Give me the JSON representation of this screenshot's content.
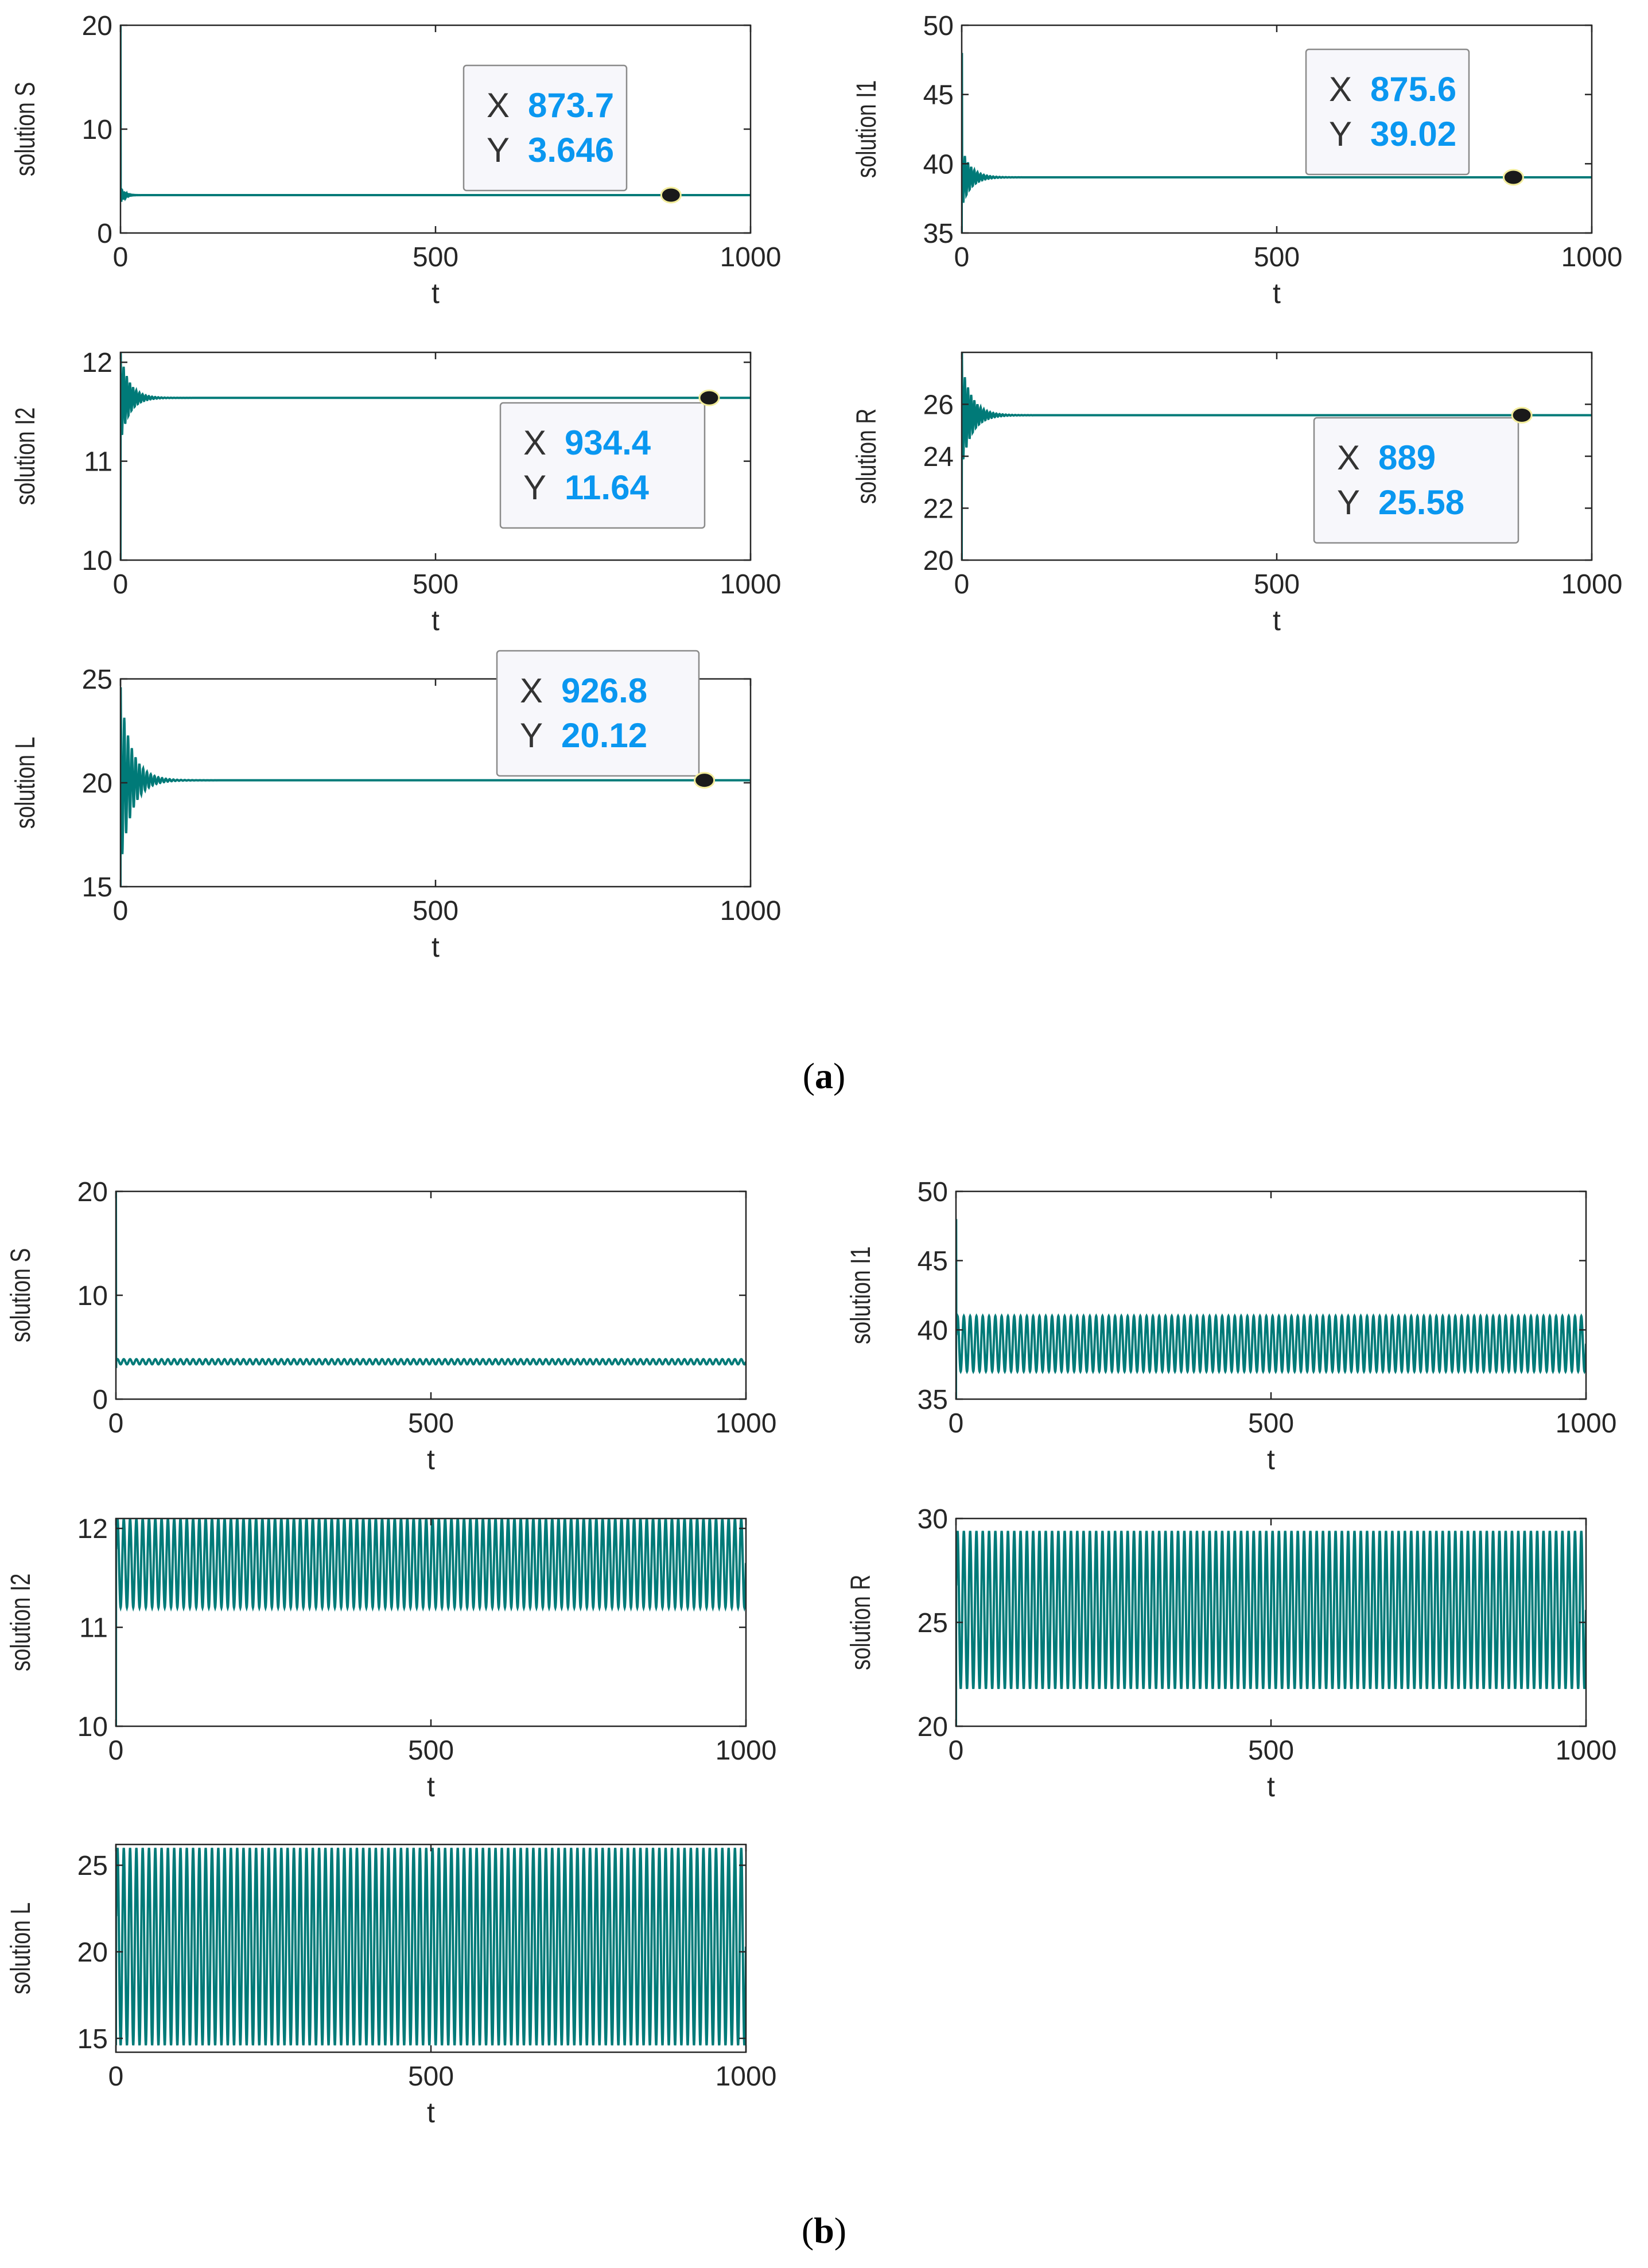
{
  "figure_labels": {
    "a": "a",
    "b": "b"
  },
  "colors": {
    "line": "#007a78",
    "datatip_value": "#0a97f0",
    "axis": "#262626",
    "marker": "#1a1a1a",
    "marker_edge": "#f2ec9a"
  },
  "chart_data": [
    {
      "id": "a-S",
      "type": "line",
      "panel": "a",
      "xlabel": "t",
      "ylabel": "solution S",
      "xlim": [
        0,
        1000
      ],
      "ylim": [
        0,
        20
      ],
      "xticks": [
        "0",
        "500",
        "1000"
      ],
      "yticks": [
        "0",
        "10",
        "20"
      ],
      "yticks_values": [
        0,
        10,
        20
      ],
      "behavior": "damped",
      "initial": 20,
      "dip": 3.0,
      "equilibrium": 3.646,
      "amplitude": 0.8,
      "decay_t": 6,
      "period": 2.5,
      "datatip": {
        "x_key": "X",
        "y_key": "Y",
        "x": "873.7",
        "y": "3.646",
        "x_value": 873.7,
        "y_value": 3.646
      }
    },
    {
      "id": "a-I1",
      "type": "line",
      "panel": "a",
      "xlabel": "t",
      "ylabel": "solution I1",
      "xlim": [
        0,
        1000
      ],
      "ylim": [
        35,
        50
      ],
      "xticks": [
        "0",
        "500",
        "1000"
      ],
      "yticks": [
        "35",
        "40",
        "45",
        "50"
      ],
      "yticks_values": [
        35,
        40,
        45,
        50
      ],
      "behavior": "damped",
      "initial": 35,
      "dip": 48,
      "equilibrium": 39.02,
      "amplitude": 2.2,
      "decay_t": 14,
      "period": 5,
      "datatip": {
        "x_key": "X",
        "y_key": "Y",
        "x": "875.6",
        "y": "39.02",
        "x_value": 875.6,
        "y_value": 39.02
      }
    },
    {
      "id": "a-I2",
      "type": "line",
      "panel": "a",
      "xlabel": "t",
      "ylabel": "solution I2",
      "xlim": [
        0,
        1000
      ],
      "ylim": [
        10,
        12.1
      ],
      "xticks": [
        "0",
        "500",
        "1000"
      ],
      "yticks": [
        "10",
        "11",
        "12"
      ],
      "yticks_values": [
        10,
        11,
        12
      ],
      "behavior": "damped",
      "initial": 10,
      "dip": 12.1,
      "equilibrium": 11.64,
      "amplitude": 0.45,
      "decay_t": 14,
      "period": 5,
      "datatip": {
        "x_key": "X",
        "y_key": "Y",
        "x": "934.4",
        "y": "11.64",
        "x_value": 934.4,
        "y_value": 11.64
      }
    },
    {
      "id": "a-R",
      "type": "line",
      "panel": "a",
      "xlabel": "t",
      "ylabel": "solution R",
      "xlim": [
        0,
        1000
      ],
      "ylim": [
        20,
        28
      ],
      "xticks": [
        "0",
        "500",
        "1000"
      ],
      "yticks": [
        "20",
        "22",
        "24",
        "26"
      ],
      "yticks_values": [
        20,
        22,
        24,
        26
      ],
      "behavior": "damped",
      "initial": 20,
      "dip": 28,
      "equilibrium": 25.58,
      "amplitude": 2.0,
      "decay_t": 16,
      "period": 5,
      "datatip": {
        "x_key": "X",
        "y_key": "Y",
        "x": "889",
        "y": "25.58",
        "x_value": 889,
        "y_value": 25.58
      }
    },
    {
      "id": "a-L",
      "type": "line",
      "panel": "a",
      "xlabel": "t",
      "ylabel": "solution L",
      "xlim": [
        0,
        1000
      ],
      "ylim": [
        15,
        25
      ],
      "xticks": [
        "0",
        "500",
        "1000"
      ],
      "yticks": [
        "15",
        "20",
        "25"
      ],
      "yticks_values": [
        15,
        20,
        25
      ],
      "behavior": "damped",
      "initial": 15,
      "dip": 24.6,
      "equilibrium": 20.12,
      "amplitude": 4.2,
      "decay_t": 18,
      "period": 6,
      "datatip": {
        "x_key": "X",
        "y_key": "Y",
        "x": "926.8",
        "y": "20.12",
        "x_value": 926.8,
        "y_value": 20.12
      }
    },
    {
      "id": "b-S",
      "type": "line",
      "panel": "b",
      "xlabel": "t",
      "ylabel": "solution S",
      "xlim": [
        0,
        1000
      ],
      "ylim": [
        0,
        20
      ],
      "xticks": [
        "0",
        "500",
        "1000"
      ],
      "yticks": [
        "0",
        "10",
        "20"
      ],
      "yticks_values": [
        0,
        10,
        20
      ],
      "behavior": "sustained",
      "initial": 20,
      "dip": 3.0,
      "center": 3.6,
      "amplitude": 0.25,
      "period": 10
    },
    {
      "id": "b-I1",
      "type": "line",
      "panel": "b",
      "xlabel": "t",
      "ylabel": "solution I1",
      "xlim": [
        0,
        1000
      ],
      "ylim": [
        35,
        50
      ],
      "xticks": [
        "0",
        "500",
        "1000"
      ],
      "yticks": [
        "35",
        "40",
        "45",
        "50"
      ],
      "yticks_values": [
        35,
        40,
        45,
        50
      ],
      "behavior": "sustained",
      "initial": 35,
      "dip": 48,
      "center": 39.0,
      "amplitude": 2.0,
      "period": 10
    },
    {
      "id": "b-I2",
      "type": "line",
      "panel": "b",
      "xlabel": "t",
      "ylabel": "solution I2",
      "xlim": [
        0,
        1000
      ],
      "ylim": [
        10,
        12.1
      ],
      "xticks": [
        "0",
        "500",
        "1000"
      ],
      "yticks": [
        "10",
        "11",
        "12"
      ],
      "yticks_values": [
        10,
        11,
        12
      ],
      "behavior": "sustained",
      "initial": 10,
      "dip": 12.1,
      "center": 11.65,
      "amplitude": 0.45,
      "period": 10
    },
    {
      "id": "b-R",
      "type": "line",
      "panel": "b",
      "xlabel": "t",
      "ylabel": "solution R",
      "xlim": [
        0,
        1000
      ],
      "ylim": [
        20,
        30
      ],
      "xticks": [
        "0",
        "500",
        "1000"
      ],
      "yticks": [
        "20",
        "25",
        "30"
      ],
      "yticks_values": [
        20,
        25,
        30
      ],
      "behavior": "sustained",
      "initial": 20,
      "dip": 29.4,
      "center": 25.6,
      "amplitude": 3.8,
      "period": 10
    },
    {
      "id": "b-L",
      "type": "line",
      "panel": "b",
      "xlabel": "t",
      "ylabel": "solution L",
      "xlim": [
        0,
        1000
      ],
      "ylim": [
        14.2,
        26.2
      ],
      "xticks": [
        "0",
        "500",
        "1000"
      ],
      "yticks": [
        "15",
        "20",
        "25"
      ],
      "yticks_values": [
        15,
        20,
        25
      ],
      "behavior": "sustained",
      "initial": 14.6,
      "dip": 26,
      "center": 20.3,
      "amplitude": 5.7,
      "period": 10
    }
  ]
}
